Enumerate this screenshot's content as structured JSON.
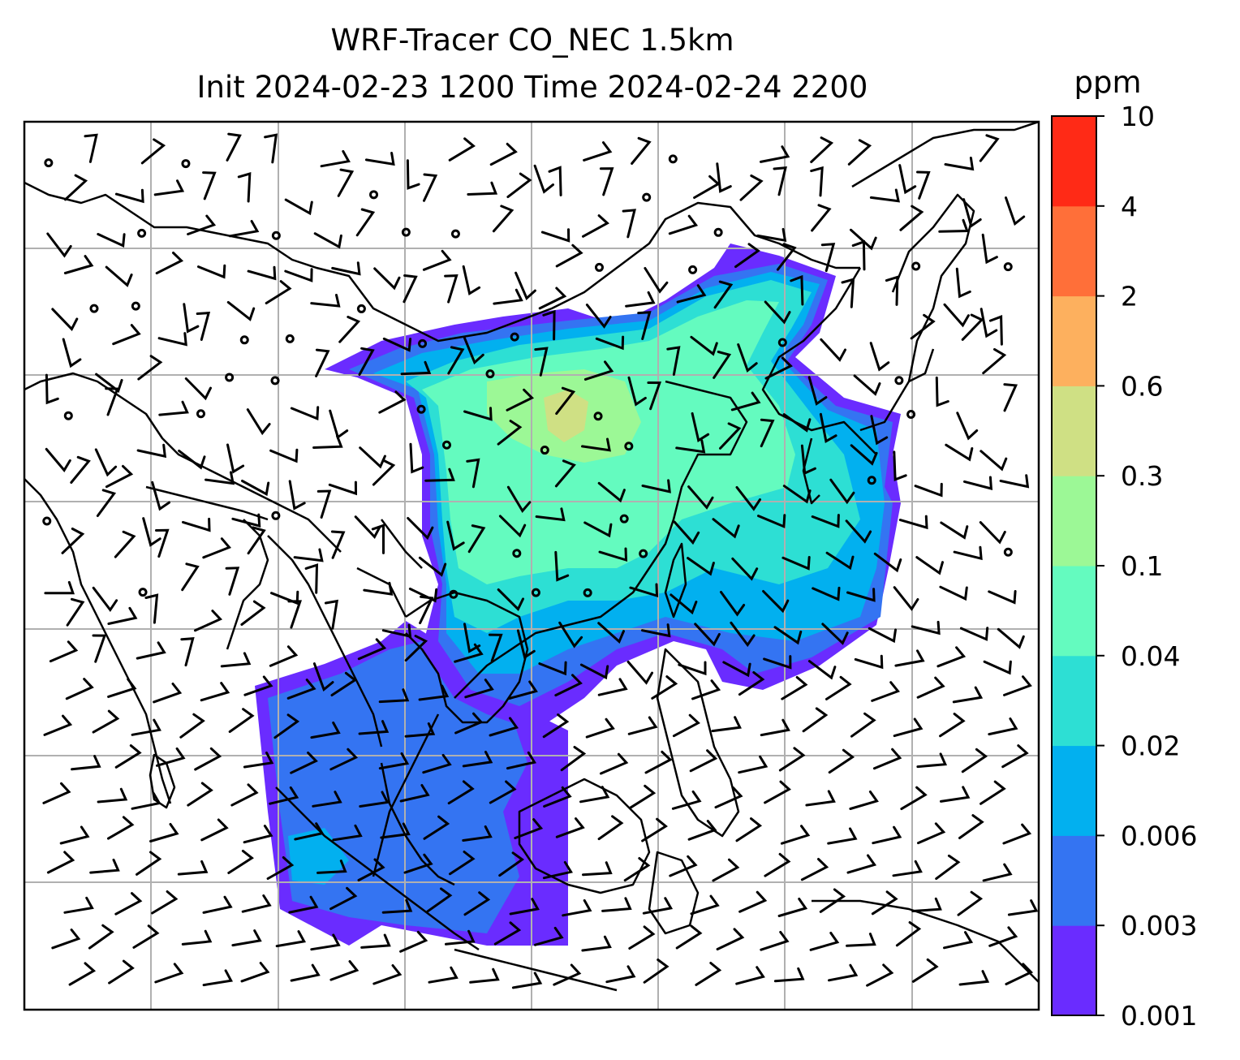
{
  "title": {
    "line1": "WRF-Tracer CO_NEC 1.5km",
    "line2": "Init 2024-02-23 1200 Time 2024-02-24 2200"
  },
  "colorbar": {
    "unit": "ppm",
    "levels": [
      "0.001",
      "0.003",
      "0.006",
      "0.02",
      "0.04",
      "0.1",
      "0.3",
      "0.6",
      "2",
      "4",
      "10"
    ],
    "colors": [
      "#6a2cff",
      "#3474f2",
      "#02b0ef",
      "#2ddfd4",
      "#64fbbf",
      "#9cf896",
      "#cfe084",
      "#fdb05e",
      "#ff6f39",
      "#ff2a16"
    ]
  },
  "map": {
    "frame_color": "#000000",
    "grid_color": "#b0b0b0",
    "coastline_color": "#000000",
    "barb_color": "#000000"
  },
  "chart_data": {
    "type": "heatmap",
    "variable": "CO_NEC tracer concentration",
    "units": "ppm",
    "levels": [
      0.001,
      0.003,
      0.006,
      0.02,
      0.04,
      0.1,
      0.3,
      0.6,
      2,
      4,
      10
    ],
    "overlays": [
      "wind barbs",
      "coastlines",
      "country borders",
      "lat-lon gridlines"
    ],
    "max_visible_class": "0.3-0.6"
  }
}
